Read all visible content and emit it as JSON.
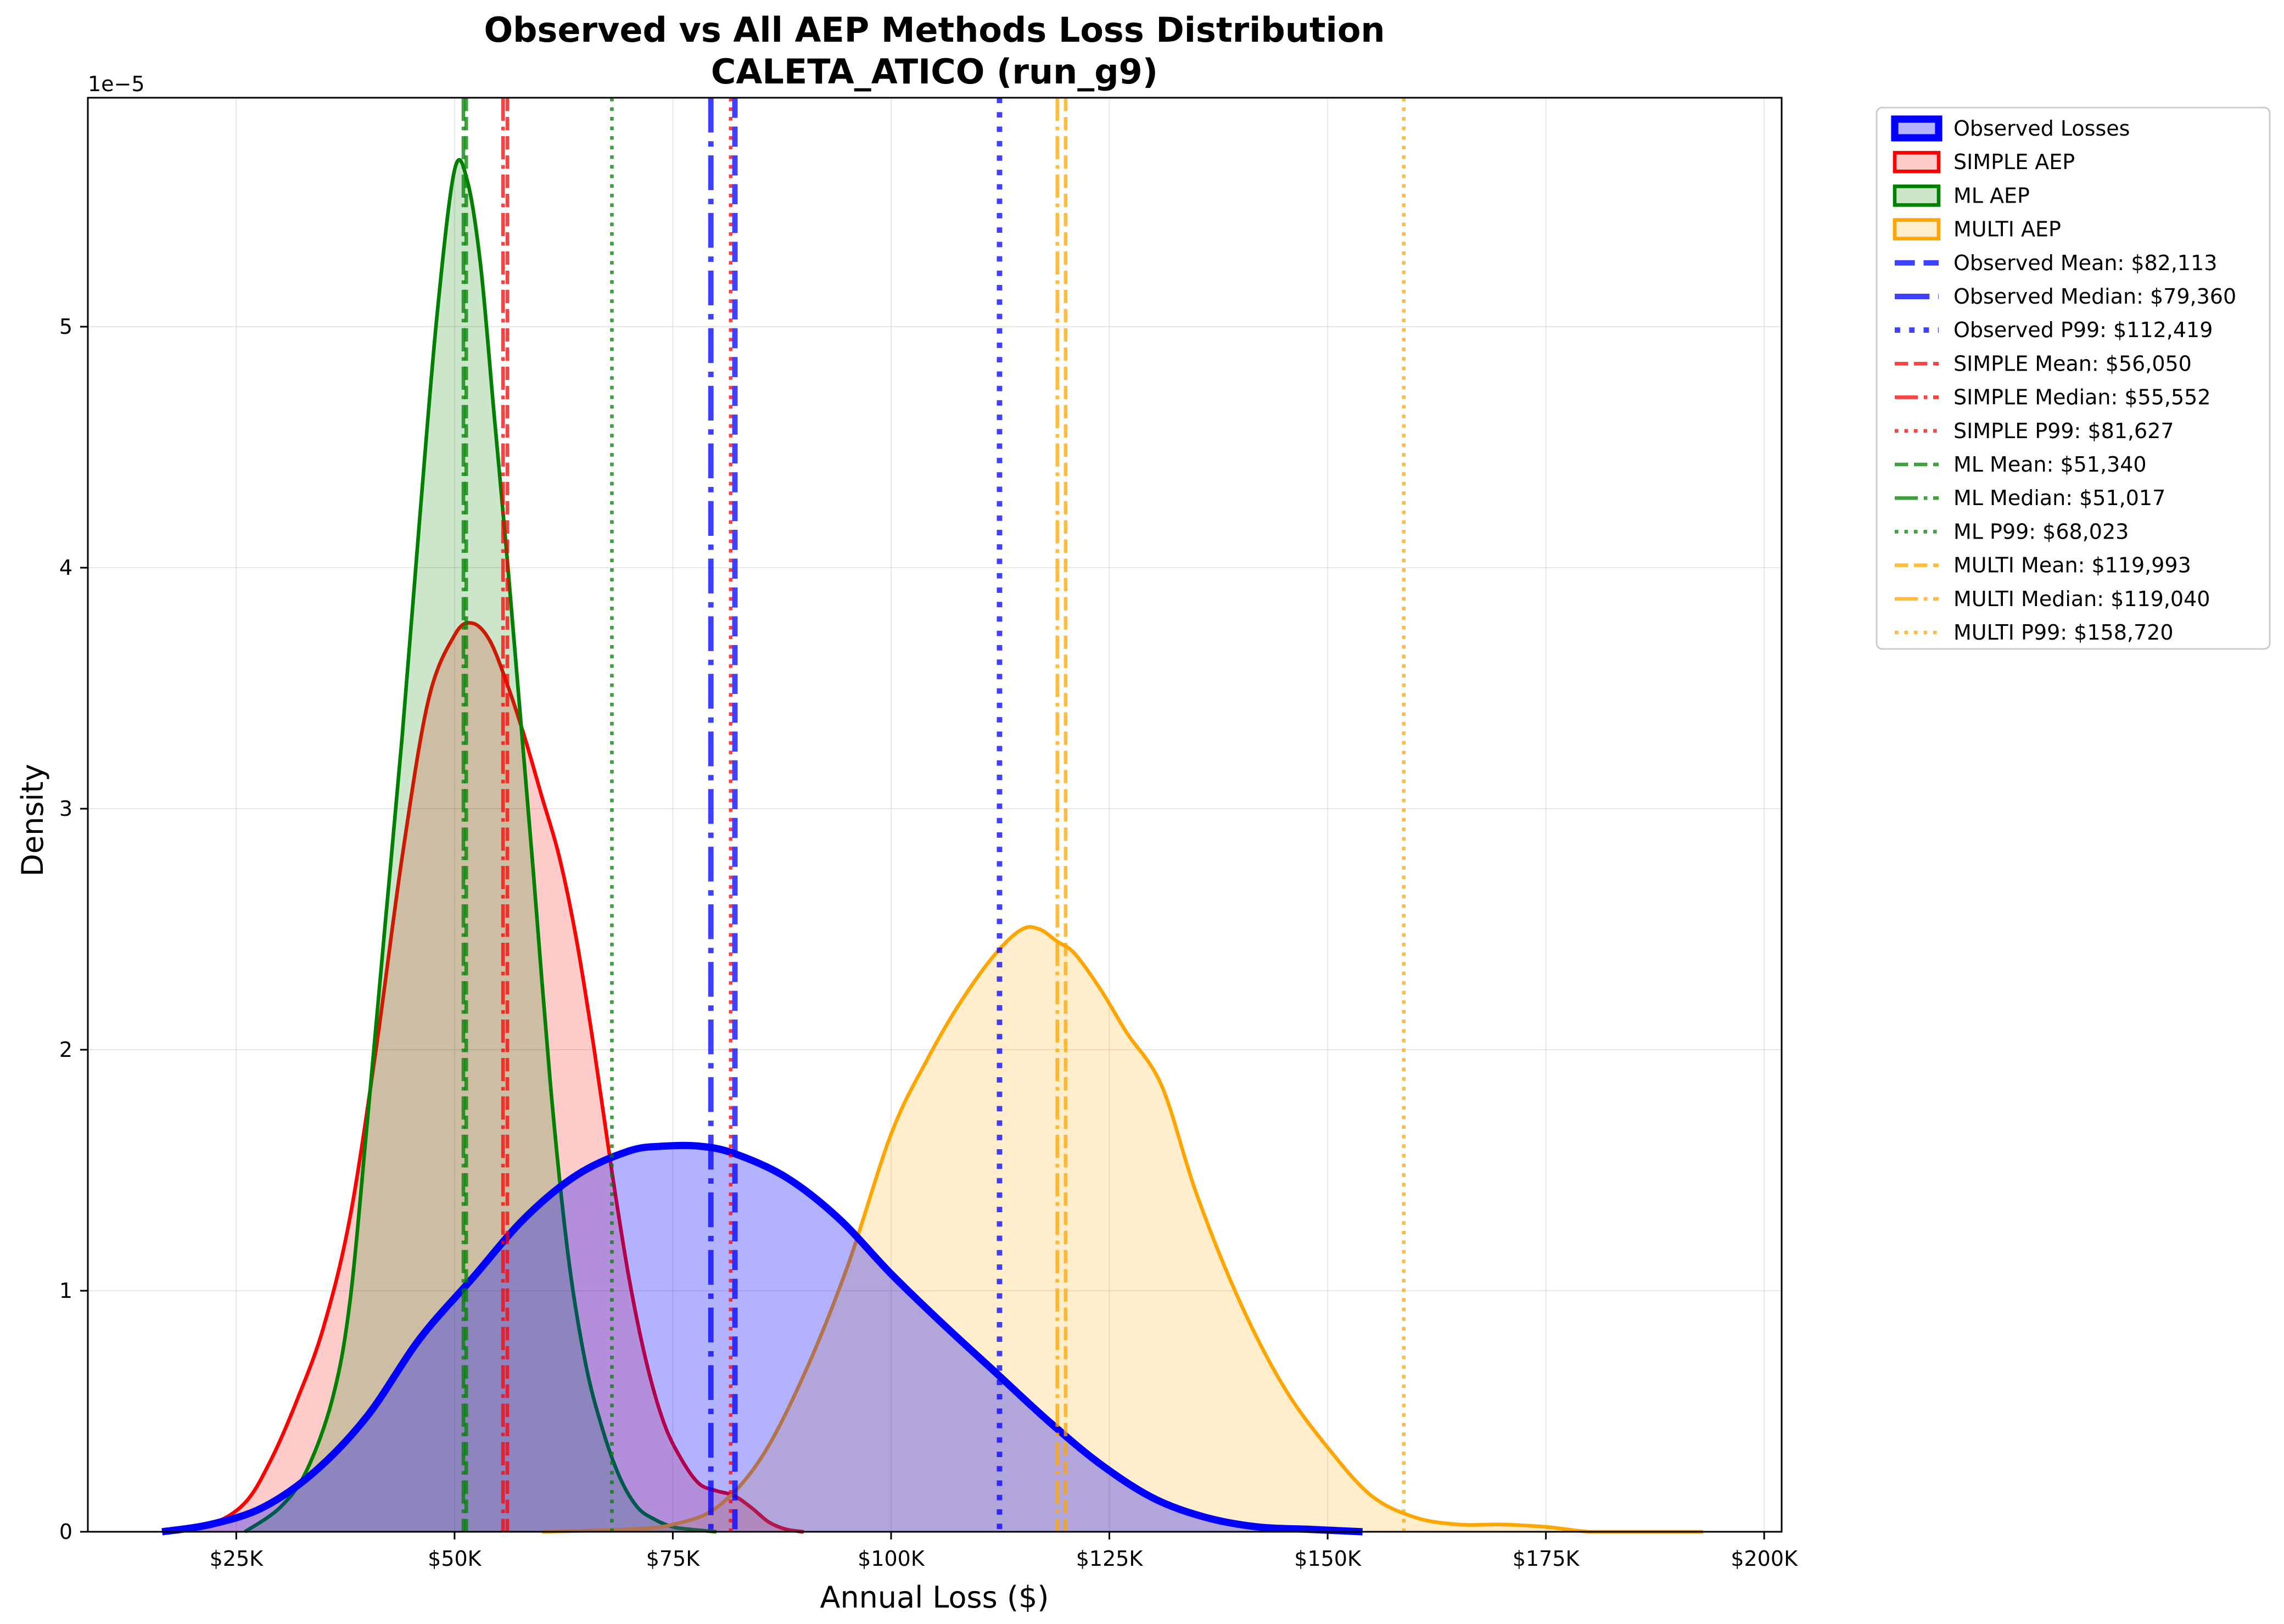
{
  "chart_data": {
    "type": "area",
    "title": "Observed vs All AEP Methods Loss Distribution",
    "subtitle": "CALETA_ATICO (run_g9)",
    "xlabel": "Annual Loss ($)",
    "ylabel": "Density",
    "y_offset_label": "1e−5",
    "xlim": [
      8000,
      202000
    ],
    "ylim": [
      0,
      5.95
    ],
    "y_scale_note": "values in units of 1e-5",
    "grid": true,
    "legend_position": "outside-right",
    "x_ticks": [
      {
        "value": 25000,
        "label": "$25K"
      },
      {
        "value": 50000,
        "label": "$50K"
      },
      {
        "value": 75000,
        "label": "$75K"
      },
      {
        "value": 100000,
        "label": "$100K"
      },
      {
        "value": 125000,
        "label": "$125K"
      },
      {
        "value": 150000,
        "label": "$150K"
      },
      {
        "value": 175000,
        "label": "$175K"
      },
      {
        "value": 200000,
        "label": "$200K"
      }
    ],
    "y_ticks": [
      {
        "value": 0,
        "label": "0"
      },
      {
        "value": 1,
        "label": "1"
      },
      {
        "value": 2,
        "label": "2"
      },
      {
        "value": 3,
        "label": "3"
      },
      {
        "value": 4,
        "label": "4"
      },
      {
        "value": 5,
        "label": "5"
      }
    ],
    "series": [
      {
        "name": "SIMPLE AEP",
        "key": "simple",
        "line_color": "#ff0000",
        "fill_color": "#ff0000",
        "fill_opacity": 0.2,
        "line_width": 2,
        "x": [
          17000,
          22000,
          26000,
          29000,
          32000,
          35000,
          38000,
          41000,
          44000,
          47000,
          50000,
          52000,
          54000,
          56000,
          58000,
          60000,
          62000,
          64000,
          66000,
          68000,
          70000,
          72000,
          74000,
          76000,
          78000,
          80000,
          82000,
          84000,
          86000,
          88000,
          90000
        ],
        "y": [
          0.0,
          0.03,
          0.12,
          0.3,
          0.55,
          0.85,
          1.3,
          2.0,
          2.8,
          3.45,
          3.72,
          3.77,
          3.7,
          3.52,
          3.3,
          3.05,
          2.8,
          2.45,
          2.0,
          1.5,
          1.05,
          0.7,
          0.45,
          0.3,
          0.2,
          0.17,
          0.15,
          0.1,
          0.04,
          0.01,
          0.0
        ]
      },
      {
        "name": "ML AEP",
        "key": "ml",
        "line_color": "#008000",
        "fill_color": "#008000",
        "fill_opacity": 0.2,
        "line_width": 2,
        "x": [
          26000,
          30000,
          33000,
          36000,
          38000,
          40000,
          42000,
          44000,
          46000,
          48000,
          50000,
          51500,
          53000,
          54500,
          56000,
          57500,
          59000,
          61000,
          63000,
          65000,
          67000,
          69000,
          71000,
          73000,
          75000,
          77000,
          80000
        ],
        "y": [
          0.0,
          0.1,
          0.25,
          0.55,
          0.95,
          1.7,
          2.5,
          3.3,
          4.2,
          5.05,
          5.65,
          5.6,
          5.25,
          4.65,
          4.05,
          3.4,
          2.75,
          1.85,
          1.15,
          0.7,
          0.42,
          0.22,
          0.1,
          0.05,
          0.02,
          0.01,
          0.0
        ]
      },
      {
        "name": "MULTI AEP",
        "key": "multi",
        "line_color": "#ffa500",
        "fill_color": "#ffa500",
        "fill_opacity": 0.2,
        "line_width": 2,
        "x": [
          60000,
          70000,
          75000,
          80000,
          85000,
          90000,
          95000,
          100000,
          104000,
          108000,
          112000,
          115000,
          117000,
          119000,
          121000,
          124000,
          127000,
          131000,
          135000,
          140000,
          145000,
          150000,
          155000,
          160000,
          165000,
          170000,
          175000,
          180000,
          185000,
          193000
        ],
        "y": [
          0.0,
          0.01,
          0.03,
          0.1,
          0.3,
          0.65,
          1.1,
          1.65,
          1.95,
          2.2,
          2.4,
          2.5,
          2.5,
          2.45,
          2.4,
          2.25,
          2.07,
          1.85,
          1.4,
          0.95,
          0.6,
          0.35,
          0.15,
          0.06,
          0.03,
          0.03,
          0.02,
          0.0,
          0.0,
          0.0
        ]
      },
      {
        "name": "Observed Losses",
        "key": "observed",
        "line_color": "#0000ff",
        "fill_color": "#0000ff",
        "fill_opacity": 0.3,
        "line_width": 4,
        "x": [
          16500,
          22000,
          28000,
          34000,
          40000,
          46000,
          52000,
          58000,
          64000,
          70000,
          74000,
          78000,
          82000,
          88000,
          94000,
          100000,
          106000,
          112000,
          118000,
          124000,
          130000,
          136000,
          142000,
          148000,
          154000
        ],
        "y": [
          0.0,
          0.03,
          0.1,
          0.25,
          0.48,
          0.8,
          1.05,
          1.3,
          1.48,
          1.58,
          1.6,
          1.6,
          1.57,
          1.47,
          1.3,
          1.07,
          0.86,
          0.66,
          0.46,
          0.28,
          0.14,
          0.06,
          0.02,
          0.01,
          0.0
        ]
      }
    ],
    "reference_lines": [
      {
        "label": "Observed Mean: $82,113",
        "x": 82113,
        "color": "#0000ff",
        "style": "dashed",
        "width": 3
      },
      {
        "label": "Observed Median: $79,360",
        "x": 79360,
        "color": "#0000ff",
        "style": "dashdot",
        "width": 3
      },
      {
        "label": "Observed P99: $112,419",
        "x": 112419,
        "color": "#0000ff",
        "style": "dotted",
        "width": 3
      },
      {
        "label": "SIMPLE Mean: $56,050",
        "x": 56050,
        "color": "#ff0000",
        "style": "dashed",
        "width": 2
      },
      {
        "label": "SIMPLE Median: $55,552",
        "x": 55552,
        "color": "#ff0000",
        "style": "dashdot",
        "width": 2
      },
      {
        "label": "SIMPLE P99: $81,627",
        "x": 81627,
        "color": "#ff0000",
        "style": "dotted",
        "width": 2
      },
      {
        "label": "ML Mean: $51,340",
        "x": 51340,
        "color": "#008000",
        "style": "dashed",
        "width": 2
      },
      {
        "label": "ML Median: $51,017",
        "x": 51017,
        "color": "#008000",
        "style": "dashdot",
        "width": 2
      },
      {
        "label": "ML P99: $68,023",
        "x": 68023,
        "color": "#008000",
        "style": "dotted",
        "width": 2
      },
      {
        "label": "MULTI Mean: $119,993",
        "x": 119993,
        "color": "#ffa500",
        "style": "dashed",
        "width": 2
      },
      {
        "label": "MULTI Median: $119,040",
        "x": 119040,
        "color": "#ffa500",
        "style": "dashdot",
        "width": 2
      },
      {
        "label": "MULTI P99: $158,720",
        "x": 158720,
        "color": "#ffa500",
        "style": "dotted",
        "width": 2
      }
    ],
    "legend": [
      {
        "kind": "patch",
        "label": "Observed Losses",
        "color": "#0000ff",
        "fill_opacity": 0.3,
        "line_width": 4
      },
      {
        "kind": "patch",
        "label": "SIMPLE AEP",
        "color": "#ff0000",
        "fill_opacity": 0.2,
        "line_width": 2
      },
      {
        "kind": "patch",
        "label": "ML AEP",
        "color": "#008000",
        "fill_opacity": 0.2,
        "line_width": 2
      },
      {
        "kind": "patch",
        "label": "MULTI AEP",
        "color": "#ffa500",
        "fill_opacity": 0.2,
        "line_width": 2
      },
      {
        "kind": "line",
        "label": "Observed Mean: $82,113",
        "color": "#0000ff",
        "style": "dashed",
        "width": 3
      },
      {
        "kind": "line",
        "label": "Observed Median: $79,360",
        "color": "#0000ff",
        "style": "dashdot",
        "width": 3
      },
      {
        "kind": "line",
        "label": "Observed P99: $112,419",
        "color": "#0000ff",
        "style": "dotted",
        "width": 3
      },
      {
        "kind": "line",
        "label": "SIMPLE Mean: $56,050",
        "color": "#ff0000",
        "style": "dashed",
        "width": 2
      },
      {
        "kind": "line",
        "label": "SIMPLE Median: $55,552",
        "color": "#ff0000",
        "style": "dashdot",
        "width": 2
      },
      {
        "kind": "line",
        "label": "SIMPLE P99: $81,627",
        "color": "#ff0000",
        "style": "dotted",
        "width": 2
      },
      {
        "kind": "line",
        "label": "ML Mean: $51,340",
        "color": "#008000",
        "style": "dashed",
        "width": 2
      },
      {
        "kind": "line",
        "label": "ML Median: $51,017",
        "color": "#008000",
        "style": "dashdot",
        "width": 2
      },
      {
        "kind": "line",
        "label": "ML P99: $68,023",
        "color": "#008000",
        "style": "dotted",
        "width": 2
      },
      {
        "kind": "line",
        "label": "MULTI Mean: $119,993",
        "color": "#ffa500",
        "style": "dashed",
        "width": 2
      },
      {
        "kind": "line",
        "label": "MULTI Median: $119,040",
        "color": "#ffa500",
        "style": "dashdot",
        "width": 2
      },
      {
        "kind": "line",
        "label": "MULTI P99: $158,720",
        "color": "#ffa500",
        "style": "dotted",
        "width": 2
      }
    ]
  }
}
